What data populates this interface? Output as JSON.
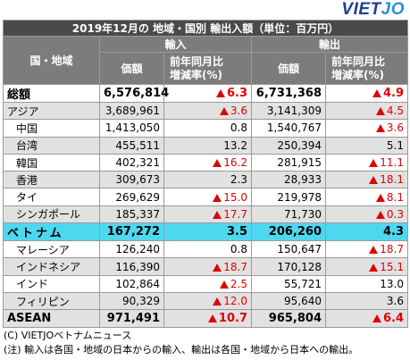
{
  "logo": {
    "part1": "VIET",
    "part2": "JO"
  },
  "table": {
    "title": "2019年12月の 地域・国別 輸出入額（単位：百万円）",
    "col_country": "国・地域",
    "import_header": "輸入",
    "export_header": "輸出",
    "value_label": "価額",
    "pct_label_line1": "前年同月比",
    "pct_label_line2": "増減率(%)",
    "rows": [
      {
        "name": "総額",
        "imp": "6,576,814",
        "imp_pct": "6.3",
        "imp_neg": true,
        "exp": "6,731,368",
        "exp_pct": "4.9",
        "exp_neg": true
      },
      {
        "name": "アジア",
        "imp": "3,689,961",
        "imp_pct": "3.6",
        "imp_neg": true,
        "exp": "3,141,309",
        "exp_pct": "4.5",
        "exp_neg": true
      },
      {
        "name": "中国",
        "imp": "1,413,050",
        "imp_pct": "0.8",
        "imp_neg": false,
        "exp": "1,540,767",
        "exp_pct": "3.6",
        "exp_neg": true
      },
      {
        "name": "台湾",
        "imp": "455,511",
        "imp_pct": "13.2",
        "imp_neg": false,
        "exp": "250,394",
        "exp_pct": "5.1",
        "exp_neg": false
      },
      {
        "name": "韓国",
        "imp": "402,321",
        "imp_pct": "16.2",
        "imp_neg": true,
        "exp": "281,915",
        "exp_pct": "11.1",
        "exp_neg": true
      },
      {
        "name": "香港",
        "imp": "309,673",
        "imp_pct": "2.3",
        "imp_neg": false,
        "exp": "28,933",
        "exp_pct": "18.1",
        "exp_neg": true
      },
      {
        "name": "タイ",
        "imp": "269,629",
        "imp_pct": "15.0",
        "imp_neg": true,
        "exp": "219,978",
        "exp_pct": "8.1",
        "exp_neg": true
      },
      {
        "name": "シンガポール",
        "imp": "185,337",
        "imp_pct": "17.7",
        "imp_neg": true,
        "exp": "71,730",
        "exp_pct": "0.3",
        "exp_neg": true
      },
      {
        "name": "ベトナム",
        "imp": "167,272",
        "imp_pct": "3.5",
        "imp_neg": false,
        "exp": "206,260",
        "exp_pct": "4.3",
        "exp_neg": false
      },
      {
        "name": "マレーシア",
        "imp": "126,240",
        "imp_pct": "0.8",
        "imp_neg": false,
        "exp": "150,647",
        "exp_pct": "18.7",
        "exp_neg": true
      },
      {
        "name": "インドネシア",
        "imp": "116,390",
        "imp_pct": "18.7",
        "imp_neg": true,
        "exp": "170,128",
        "exp_pct": "15.1",
        "exp_neg": true
      },
      {
        "name": "インド",
        "imp": "102,864",
        "imp_pct": "2.5",
        "imp_neg": true,
        "exp": "55,721",
        "exp_pct": "13.0",
        "exp_neg": false
      },
      {
        "name": "フィリピン",
        "imp": "90,329",
        "imp_pct": "12.0",
        "imp_neg": true,
        "exp": "95,640",
        "exp_pct": "3.6",
        "exp_neg": false
      },
      {
        "name": "ASEAN",
        "imp": "971,491",
        "imp_pct": "10.7",
        "imp_neg": true,
        "exp": "965,804",
        "exp_pct": "6.4",
        "exp_neg": true
      }
    ]
  },
  "notes": {
    "copyright": "(C) VIETJOベトナムニュース",
    "note": "(注) 輸入は各国・地域の日本からの輸入、輸出は各国・地域から日本への輸出。"
  },
  "colors": {
    "header_dark": "#4a4a4a",
    "header_mid": "#7c7c7c",
    "row_grey": "#e1e1e1",
    "vietnam_highlight": "#4ed8f0",
    "negative": "#e00000"
  }
}
